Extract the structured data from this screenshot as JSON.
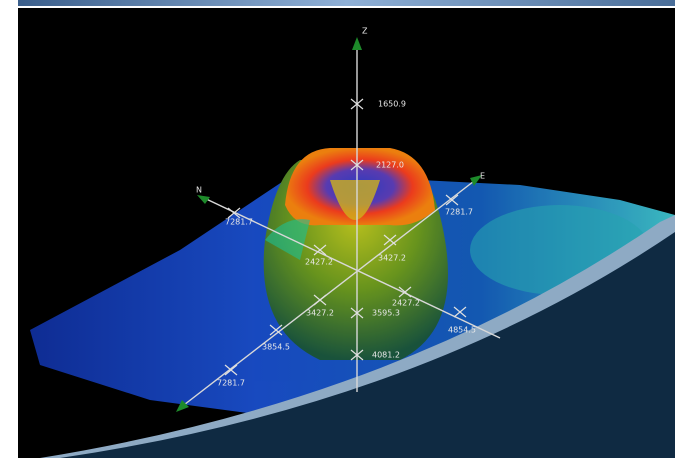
{
  "axes": {
    "z": "Z",
    "n": "N",
    "e": "E"
  },
  "tick_labels": [
    "1650.9",
    "2127.0",
    "7281.7",
    "7281.7",
    "2427.2",
    "3427.2",
    "2427.2",
    "3427.2",
    "3595.3",
    "4854.5",
    "3854.5",
    "4081.2",
    "7281.7"
  ]
}
